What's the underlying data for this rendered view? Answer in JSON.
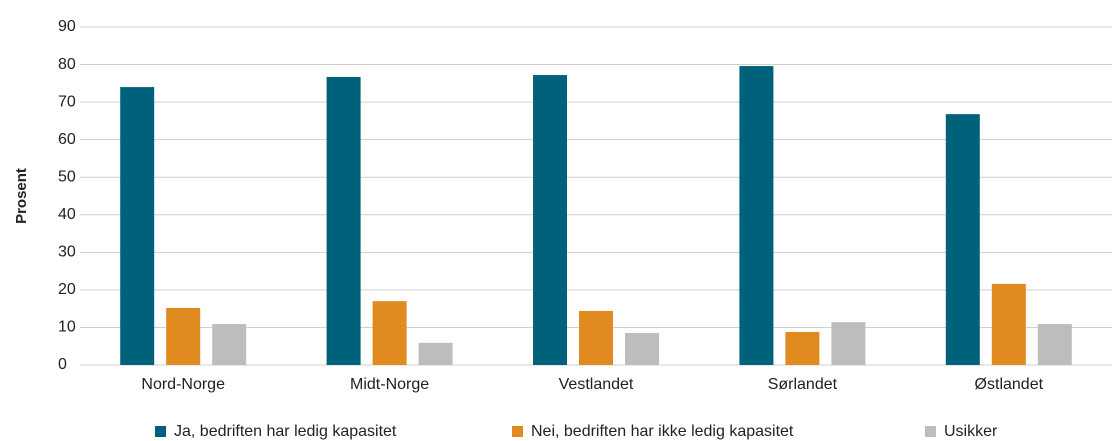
{
  "chart_data": {
    "type": "bar",
    "y_label": "Prosent",
    "categories": [
      "Nord-Norge",
      "Midt-Norge",
      "Vestlandet",
      "Sørlandet",
      "Østlandet"
    ],
    "series": [
      {
        "name": "Ja, bedriften har ledig kapasitet",
        "color": "#00627a",
        "values": [
          74,
          76.7,
          77.2,
          79.6,
          66.8
        ]
      },
      {
        "name": "Nei, bedriften har ikke ledig kapasitet",
        "color": "#e08a20",
        "values": [
          15.2,
          17,
          14.4,
          8.8,
          21.6
        ]
      },
      {
        "name": "Usikker",
        "color": "#bdbdbd",
        "values": [
          10.9,
          5.9,
          8.5,
          11.4,
          10.9
        ]
      }
    ],
    "ylim": [
      0,
      90
    ],
    "yticks": [
      0,
      10,
      20,
      30,
      40,
      50,
      60,
      70,
      80,
      90
    ],
    "grid": true
  }
}
